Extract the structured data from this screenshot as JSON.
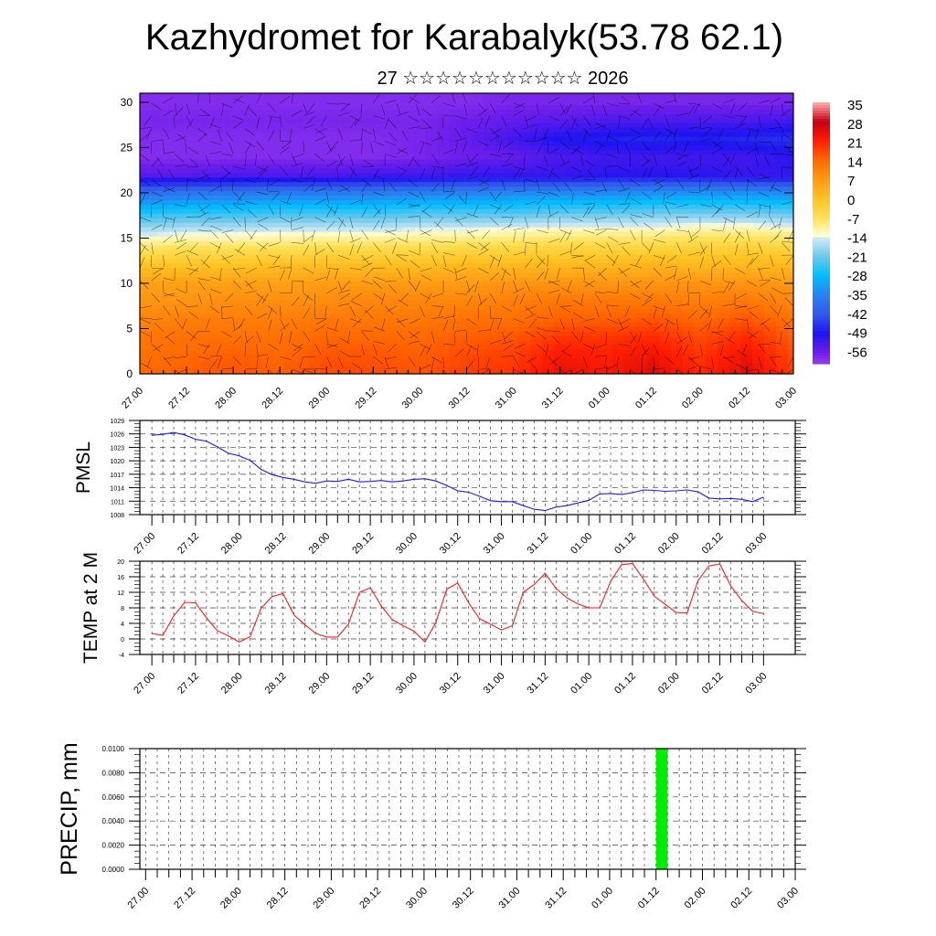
{
  "header": {
    "title": "Kazhydromet for Karabalyk(53.78 62.1)",
    "subtitle": "27 ☆☆☆☆☆☆☆☆☆☆☆ 2026"
  },
  "colors": {
    "pmsl_line": "#1a1aff",
    "temp_line": "#ff1a1a",
    "precip_bar": "#00ee00"
  },
  "chart_data": [
    {
      "id": "upper-air",
      "type": "heatmap",
      "xlabel": "",
      "ylabel": "",
      "x_tick_labels": [
        "27.00",
        "27.12",
        "28.00",
        "28.12",
        "29.00",
        "29.12",
        "30.00",
        "30.12",
        "31.00",
        "31.12",
        "01.00",
        "01.12",
        "02.00",
        "02.12",
        "03.00"
      ],
      "y_ticks": [
        0,
        5,
        10,
        15,
        20,
        25,
        30
      ],
      "ylim": [
        0,
        31
      ],
      "grid_levels": [
        0,
        2,
        4,
        6,
        8,
        10,
        12,
        14,
        16,
        18,
        20,
        22,
        24,
        26,
        28,
        30
      ],
      "grid_times": [
        "27.00",
        "27.12",
        "28.00",
        "28.12",
        "29.00",
        "29.12",
        "30.00",
        "30.12",
        "31.00",
        "31.12",
        "01.00",
        "01.12",
        "02.00",
        "02.12",
        "03.00"
      ],
      "values": [
        [
          14,
          15,
          16,
          15,
          17,
          17,
          16,
          18,
          19,
          24,
          22,
          25,
          20,
          25,
          18
        ],
        [
          13,
          14,
          15,
          14,
          16,
          16,
          15,
          17,
          18,
          22,
          21,
          23,
          19,
          23,
          17
        ],
        [
          12,
          13,
          13,
          13,
          14,
          14,
          14,
          15,
          16,
          19,
          19,
          20,
          17,
          20,
          15
        ],
        [
          10,
          11,
          11,
          11,
          12,
          12,
          12,
          13,
          13,
          15,
          15,
          16,
          14,
          16,
          13
        ],
        [
          8,
          8,
          9,
          9,
          9,
          10,
          10,
          10,
          11,
          12,
          12,
          12,
          11,
          12,
          10
        ],
        [
          6,
          6,
          6,
          6,
          7,
          7,
          7,
          7,
          8,
          8,
          8,
          8,
          8,
          8,
          7
        ],
        [
          0,
          0,
          0,
          1,
          1,
          1,
          1,
          2,
          2,
          2,
          2,
          3,
          2,
          2,
          2
        ],
        [
          -8,
          -7,
          -7,
          -7,
          -6,
          -6,
          -6,
          -5,
          -5,
          -4,
          -4,
          -4,
          -3,
          -3,
          -4
        ],
        [
          -17,
          -16,
          -16,
          -15,
          -15,
          -15,
          -14,
          -14,
          -13,
          -12,
          -12,
          -12,
          -11,
          -11,
          -12
        ],
        [
          -27,
          -26,
          -26,
          -25,
          -25,
          -25,
          -24,
          -24,
          -24,
          -23,
          -23,
          -22,
          -22,
          -22,
          -23
        ],
        [
          -38,
          -37,
          -37,
          -36,
          -36,
          -36,
          -35,
          -35,
          -34,
          -34,
          -34,
          -33,
          -33,
          -33,
          -34
        ],
        [
          -54,
          -54,
          -53,
          -53,
          -53,
          -52,
          -52,
          -51,
          -51,
          -51,
          -50,
          -50,
          -50,
          -51,
          -51
        ],
        [
          -58,
          -58,
          -58,
          -58,
          -58,
          -58,
          -57,
          -56,
          -55,
          -53,
          -52,
          -52,
          -52,
          -52,
          -50
        ],
        [
          -58,
          -58,
          -58,
          -58,
          -58,
          -58,
          -57,
          -55,
          -52,
          -49,
          -48,
          -47,
          -48,
          -47,
          -46
        ],
        [
          -57,
          -57,
          -57,
          -57,
          -57,
          -57,
          -57,
          -56,
          -55,
          -54,
          -53,
          -53,
          -53,
          -53,
          -52
        ],
        [
          -58,
          -58,
          -58,
          -58,
          -58,
          -58,
          -58,
          -58,
          -57,
          -57,
          -57,
          -57,
          -57,
          -57,
          -57
        ]
      ],
      "colorbar": {
        "labels": [
          "35",
          "28",
          "21",
          "14",
          "7",
          "0",
          "-7",
          "-14",
          "-21",
          "-28",
          "-35",
          "-42",
          "-49",
          "-56"
        ],
        "range": [
          -60,
          35
        ]
      }
    },
    {
      "id": "pmsl",
      "type": "line",
      "ylabel": "PMSL",
      "ylim": [
        1008,
        1029
      ],
      "y_tick_labels": [
        "1029",
        "1026",
        "1023",
        "1020",
        "1017",
        "1014",
        "1011",
        "1008"
      ],
      "x_tick_labels": [
        "27.00",
        "27.12",
        "28.00",
        "28.12",
        "29.00",
        "29.12",
        "30.00",
        "30.12",
        "31.00",
        "31.12",
        "01.00",
        "01.12",
        "02.00",
        "02.12",
        "03.00"
      ],
      "step_hours": 3,
      "values": [
        1025.7,
        1025.9,
        1026.3,
        1025.8,
        1024.8,
        1024.4,
        1023.1,
        1021.7,
        1021.1,
        1020.1,
        1018.1,
        1016.9,
        1016.3,
        1015.9,
        1015.3,
        1015.0,
        1015.5,
        1015.4,
        1015.9,
        1015.3,
        1015.4,
        1015.6,
        1015.3,
        1015.5,
        1015.9,
        1016.0,
        1015.5,
        1014.5,
        1013.3,
        1013.0,
        1012.1,
        1011.1,
        1010.9,
        1010.9,
        1010.0,
        1009.2,
        1008.9,
        1009.7,
        1010.0,
        1010.6,
        1011.2,
        1012.6,
        1012.7,
        1012.5,
        1012.9,
        1013.5,
        1013.4,
        1013.2,
        1013.3,
        1013.5,
        1013.1,
        1011.7,
        1011.5,
        1011.6,
        1011.4,
        1010.9,
        1011.9
      ]
    },
    {
      "id": "temp",
      "type": "line",
      "ylabel": "TEMP at 2 M",
      "ylim": [
        -4,
        20
      ],
      "y_tick_labels": [
        "20",
        "16",
        "12",
        "8",
        "4",
        "0",
        "-4"
      ],
      "x_tick_labels": [
        "27.00",
        "27.12",
        "28.00",
        "28.12",
        "29.00",
        "29.12",
        "30.00",
        "30.12",
        "31.00",
        "31.12",
        "01.00",
        "01.12",
        "02.00",
        "02.12",
        "03.00"
      ],
      "step_hours": 3,
      "values": [
        1.4,
        0.9,
        5.9,
        9.4,
        9.3,
        5.4,
        2.1,
        0.8,
        -0.8,
        0.6,
        7.9,
        10.9,
        11.7,
        6.2,
        3.7,
        1.4,
        0.5,
        0.5,
        3.8,
        12.0,
        13.2,
        8.5,
        5.0,
        3.4,
        2.0,
        -0.8,
        4.2,
        12.8,
        14.4,
        9.3,
        5.2,
        3.8,
        2.3,
        3.4,
        12.0,
        14.0,
        16.9,
        13.0,
        10.6,
        9.0,
        8.0,
        8.0,
        14.8,
        19.1,
        19.4,
        15.4,
        11.0,
        8.9,
        6.8,
        6.7,
        15.0,
        18.8,
        19.3,
        13.6,
        9.9,
        7.1,
        6.5
      ]
    },
    {
      "id": "precip",
      "type": "bar",
      "ylabel": "PRECIP, mm",
      "ylim": [
        0,
        0.01
      ],
      "y_tick_labels": [
        "0.0100",
        "0.0080",
        "0.0060",
        "0.0040",
        "0.0020",
        "0.0000"
      ],
      "x_tick_labels": [
        "27.00",
        "27.12",
        "28.00",
        "28.12",
        "29.00",
        "29.12",
        "30.00",
        "30.12",
        "31.00",
        "31.12",
        "01.00",
        "01.12",
        "02.00",
        "02.12",
        "03.00"
      ],
      "step_hours": 3,
      "bars": [
        {
          "time": "01.12",
          "value": 0.01
        }
      ]
    }
  ]
}
